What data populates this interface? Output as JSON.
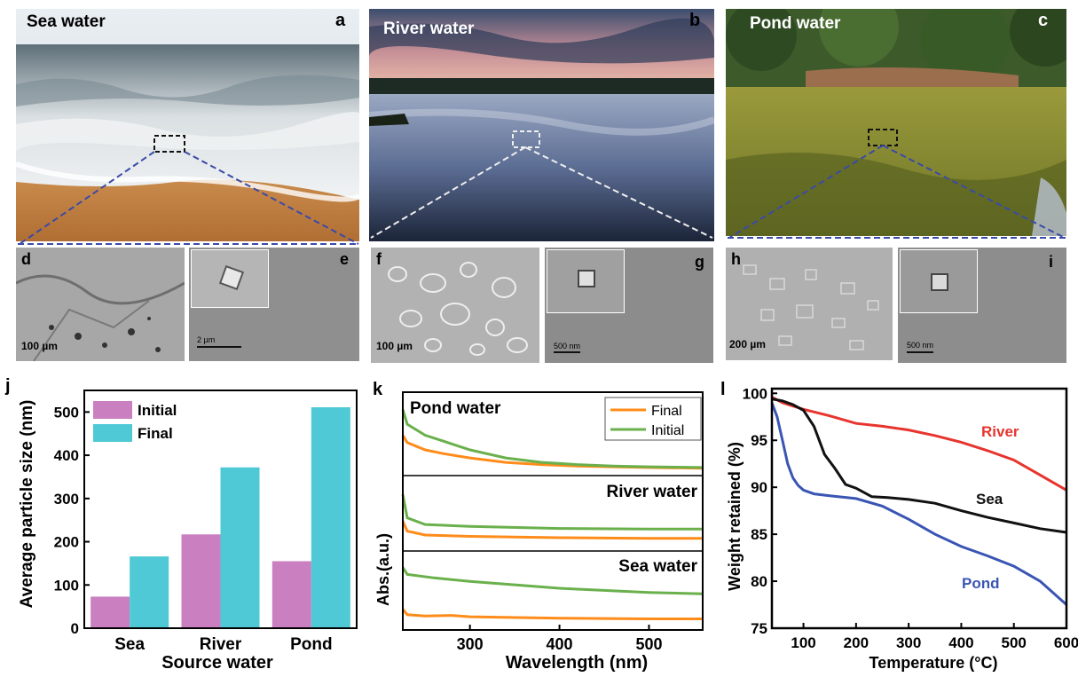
{
  "photos": [
    {
      "title": "Sea water",
      "letter": "a"
    },
    {
      "title": "River water",
      "letter": "b"
    },
    {
      "title": "Pond water",
      "letter": "c"
    }
  ],
  "sem_panels": [
    {
      "letter": "d",
      "scale": "100 µm"
    },
    {
      "letter": "e",
      "scale": "2 µm"
    },
    {
      "letter": "f",
      "scale": "100 µm"
    },
    {
      "letter": "g",
      "scale": "500 nm"
    },
    {
      "letter": "h",
      "scale": "200 µm"
    },
    {
      "letter": "i",
      "scale": "500 nm"
    }
  ],
  "chart_data": [
    {
      "panel": "j",
      "type": "bar",
      "categories": [
        "Sea",
        "River",
        "Pond"
      ],
      "series": [
        {
          "name": "Initial",
          "values": [
            73,
            217,
            155
          ],
          "color": "#c97fc0"
        },
        {
          "name": "Final",
          "values": [
            166,
            372,
            511
          ],
          "color": "#4fc9d6"
        }
      ],
      "xlabel": "Source water",
      "ylabel": "Average particle size (nm)",
      "ylim": [
        0,
        550
      ],
      "yticks": [
        0,
        100,
        200,
        300,
        400,
        500
      ],
      "legend": "top-left"
    },
    {
      "panel": "k",
      "type": "line",
      "xlabel": "Wavelength (nm)",
      "ylabel": "Abs.(a.u.)",
      "xlim": [
        225,
        560
      ],
      "xticks": [
        300,
        400,
        500
      ],
      "legend_entries": [
        {
          "name": "Final",
          "color": "#ff8c1a"
        },
        {
          "name": "Initial",
          "color": "#6ab04c"
        }
      ],
      "legend": "top-right",
      "subplots": [
        {
          "label": "Pond water",
          "series": [
            {
              "name": "Final",
              "x": [
                225,
                230,
                250,
                270,
                300,
                340,
                380,
                420,
                460,
                500,
                560
              ],
              "y": [
                0.55,
                0.45,
                0.35,
                0.3,
                0.24,
                0.18,
                0.15,
                0.13,
                0.12,
                0.11,
                0.1
              ]
            },
            {
              "name": "Initial",
              "x": [
                225,
                230,
                250,
                270,
                300,
                340,
                380,
                420,
                460,
                500,
                560
              ],
              "y": [
                0.9,
                0.7,
                0.55,
                0.47,
                0.35,
                0.24,
                0.18,
                0.15,
                0.13,
                0.12,
                0.11
              ]
            }
          ]
        },
        {
          "label": "River water",
          "series": [
            {
              "name": "Final",
              "x": [
                225,
                230,
                250,
                300,
                400,
                500,
                560
              ],
              "y": [
                0.45,
                0.3,
                0.24,
                0.22,
                0.2,
                0.19,
                0.19
              ]
            },
            {
              "name": "Initial",
              "x": [
                225,
                230,
                250,
                300,
                400,
                500,
                560
              ],
              "y": [
                0.85,
                0.5,
                0.4,
                0.37,
                0.34,
                0.33,
                0.33
              ]
            }
          ]
        },
        {
          "label": "Sea water",
          "series": [
            {
              "name": "Final",
              "x": [
                225,
                230,
                250,
                280,
                300,
                400,
                500,
                560
              ],
              "y": [
                0.3,
                0.22,
                0.2,
                0.21,
                0.19,
                0.17,
                0.16,
                0.16
              ]
            },
            {
              "name": "Initial",
              "x": [
                225,
                230,
                260,
                300,
                400,
                500,
                560
              ],
              "y": [
                0.9,
                0.8,
                0.75,
                0.7,
                0.6,
                0.54,
                0.52
              ]
            }
          ]
        }
      ]
    },
    {
      "panel": "l",
      "type": "line",
      "xlabel": "Temperature (°C)",
      "ylabel": "Weight retained (%)",
      "xlim": [
        40,
        600
      ],
      "ylim": [
        75,
        100.5
      ],
      "xticks": [
        100,
        200,
        300,
        400,
        500,
        600
      ],
      "yticks": [
        75,
        80,
        85,
        90,
        95,
        100
      ],
      "series": [
        {
          "name": "River",
          "color": "#e8342e",
          "x": [
            40,
            60,
            100,
            150,
            200,
            250,
            300,
            350,
            400,
            450,
            500,
            550,
            600
          ],
          "y": [
            99.6,
            99,
            98.3,
            97.6,
            96.8,
            96.5,
            96.1,
            95.5,
            94.8,
            93.9,
            92.9,
            91.3,
            89.7
          ]
        },
        {
          "name": "Sea",
          "color": "#111111",
          "x": [
            40,
            60,
            80,
            100,
            120,
            140,
            160,
            180,
            200,
            230,
            260,
            300,
            350,
            400,
            450,
            500,
            550,
            600
          ],
          "y": [
            99.4,
            99.2,
            98.8,
            98.2,
            96.5,
            93.5,
            92,
            90.3,
            89.9,
            89,
            88.9,
            88.7,
            88.3,
            87.5,
            86.8,
            86.2,
            85.6,
            85.2
          ]
        },
        {
          "name": "Pond",
          "color": "#3a55b4",
          "x": [
            40,
            50,
            60,
            70,
            80,
            90,
            100,
            120,
            150,
            200,
            250,
            300,
            350,
            400,
            450,
            500,
            550,
            600
          ],
          "y": [
            99,
            97.5,
            95,
            92.5,
            91,
            90.2,
            89.7,
            89.3,
            89.1,
            88.8,
            88,
            86.6,
            85,
            83.7,
            82.7,
            81.6,
            80,
            77.5
          ]
        }
      ]
    }
  ]
}
